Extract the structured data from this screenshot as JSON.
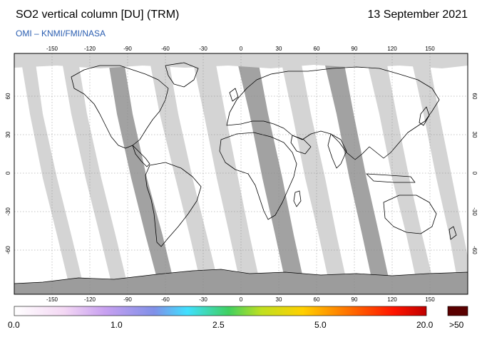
{
  "header": {
    "title": "SO2 vertical column [DU] (TRM)",
    "date": "13 September 2021",
    "credit": "OMI  –  KNMI/FMI/NASA"
  },
  "map": {
    "lon_ticks": [
      "-150",
      "-120",
      "-90",
      "-60",
      "-30",
      "0",
      "30",
      "60",
      "90",
      "120",
      "150"
    ],
    "lat_ticks": [
      "60",
      "30",
      "0",
      "-30",
      "-60"
    ],
    "colors": {
      "background": "#ffffff",
      "land_fill": "#9c9c9c",
      "swath_light": "#d4d4d4",
      "swath_dark": "#a2a2a2",
      "coastline": "#000000"
    }
  },
  "colorbar": {
    "labels": [
      "0.0",
      "1.0",
      "2.5",
      "5.0",
      "20.0"
    ],
    "overflow_label": ">50",
    "stops": [
      "#ffffff",
      "#f4d8f4",
      "#c8a0f0",
      "#8090e8",
      "#40e0ff",
      "#40d060",
      "#c0e020",
      "#ffd000",
      "#ff7a00",
      "#ff1500",
      "#c00000"
    ],
    "overflow_color": "#5a0000"
  }
}
